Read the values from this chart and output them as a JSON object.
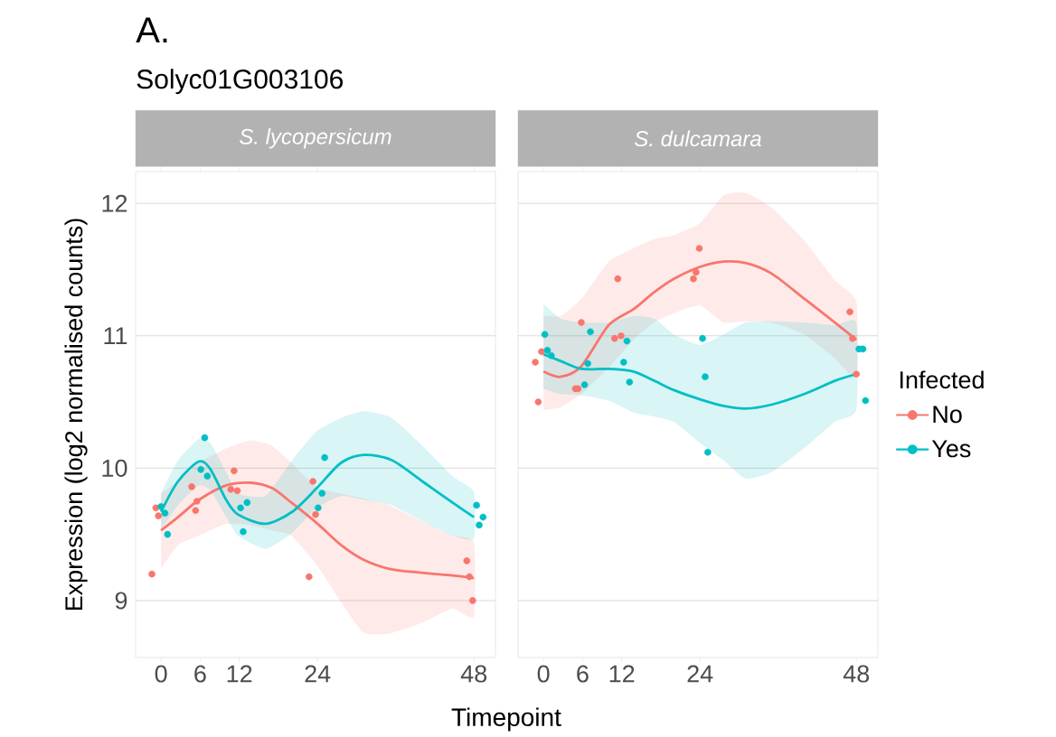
{
  "chart_data": [
    {
      "type": "scatter",
      "title": "S. lycopersicum",
      "annotations": [
        "A.",
        "Solyc01G003106"
      ],
      "xlabel": "Timepoint",
      "ylabel": "Expression (log2 normalised counts)",
      "xlim": [
        -3.9,
        51.3
      ],
      "ylim": [
        8.57,
        12.24
      ],
      "xticks": [
        0,
        6,
        12,
        24,
        48
      ],
      "yticks": [
        9,
        10,
        11,
        12
      ],
      "grid": "y",
      "series": [
        {
          "marker": "circle",
          "color": "#f8766d",
          "x": [
            -1.4,
            -0.8,
            -0.4,
            4.7,
            5.3,
            5.5,
            11.2,
            10.7,
            11.7,
            23.3,
            23.7,
            22.7,
            46.9,
            47.3,
            47.8
          ],
          "values": [
            9.2,
            9.7,
            9.64,
            9.86,
            9.68,
            9.75,
            9.98,
            9.84,
            9.83,
            9.9,
            9.65,
            9.18,
            9.3,
            9.18,
            9.0
          ]
        },
        {
          "marker": "circle",
          "color": "#00bfc4",
          "x": [
            0.0,
            0.6,
            1.0,
            6.7,
            6.1,
            7.1,
            12.2,
            13.2,
            12.6,
            25.1,
            24.7,
            24.1,
            48.4,
            49.4,
            48.8
          ],
          "values": [
            9.71,
            9.66,
            9.5,
            10.23,
            9.99,
            9.94,
            9.7,
            9.74,
            9.52,
            10.08,
            9.81,
            9.7,
            9.72,
            9.63,
            9.57
          ]
        },
        {
          "type": "line",
          "marker": "none",
          "color": "#f8766d",
          "x": [
            0,
            2.6,
            5.8,
            10,
            13.8,
            17,
            20,
            24,
            27.6,
            31,
            35,
            40,
            44.7,
            48
          ],
          "values": [
            9.53,
            9.63,
            9.76,
            9.87,
            9.89,
            9.85,
            9.74,
            9.58,
            9.42,
            9.31,
            9.24,
            9.21,
            9.19,
            9.17
          ],
          "upper": [
            9.81,
            9.9,
            10.04,
            10.15,
            10.21,
            10.17,
            10.04,
            9.85,
            9.81,
            9.77,
            9.72,
            9.6,
            9.49,
            9.44
          ],
          "lower": [
            9.24,
            9.42,
            9.49,
            9.58,
            9.57,
            9.53,
            9.49,
            9.26,
            8.99,
            8.76,
            8.75,
            8.83,
            8.94,
            8.88
          ]
        },
        {
          "type": "line",
          "marker": "none",
          "color": "#00bfc4",
          "x": [
            0,
            2.6,
            5.8,
            7.6,
            10,
            11.8,
            16,
            20.1,
            23.9,
            27.6,
            31.2,
            35.4,
            40.1,
            44.7,
            48
          ],
          "values": [
            9.67,
            9.9,
            10.05,
            9.99,
            9.76,
            9.65,
            9.58,
            9.67,
            9.85,
            10.04,
            10.1,
            10.06,
            9.9,
            9.74,
            9.63
          ],
          "upper": [
            9.81,
            10.06,
            10.22,
            10.19,
            9.97,
            9.81,
            9.79,
            10.06,
            10.28,
            10.38,
            10.43,
            10.38,
            10.17,
            9.94,
            9.82
          ],
          "lower": [
            9.53,
            9.72,
            9.87,
            9.83,
            9.63,
            9.49,
            9.39,
            9.51,
            9.7,
            9.79,
            9.76,
            9.72,
            9.6,
            9.49,
            9.47
          ]
        }
      ]
    },
    {
      "type": "scatter",
      "title": "S. dulcamara",
      "legend": "right",
      "legend_title": "Infected",
      "tick_labels": "x",
      "xlim": [
        -3.9,
        51.3
      ],
      "ylim": [
        8.57,
        12.24
      ],
      "xticks": [
        0,
        6,
        12,
        24,
        48
      ],
      "yticks": [
        9,
        10,
        11,
        12
      ],
      "grid": "y",
      "series": [
        {
          "marker": "circle",
          "color": "#f8766d",
          "x": [
            -1.25,
            -0.3,
            -0.8,
            5.8,
            4.9,
            5.3,
            11.4,
            10.9,
            11.9,
            23.9,
            23.4,
            23.0,
            47.0,
            47.4,
            48.0
          ],
          "values": [
            10.8,
            10.88,
            10.5,
            11.1,
            10.6,
            10.6,
            11.43,
            10.98,
            11.0,
            11.66,
            11.48,
            11.43,
            11.18,
            10.98,
            10.71
          ]
        },
        {
          "marker": "circle",
          "color": "#00bfc4",
          "x": [
            0.2,
            0.6,
            1.2,
            7.2,
            6.8,
            6.3,
            12.8,
            12.3,
            13.2,
            24.4,
            24.8,
            25.2,
            48.4,
            49.0,
            49.4
          ],
          "values": [
            11.01,
            10.89,
            10.85,
            11.03,
            10.79,
            10.63,
            10.96,
            10.8,
            10.65,
            10.98,
            10.69,
            10.12,
            10.9,
            10.9,
            10.51
          ]
        },
        {
          "type": "line",
          "marker": "none",
          "name": "No",
          "color": "#f8766d",
          "x": [
            0,
            2.6,
            5.8,
            10,
            13.8,
            17,
            20,
            24,
            27.6,
            31,
            35,
            40,
            44.7,
            48
          ],
          "values": [
            10.73,
            10.69,
            10.77,
            11.08,
            11.2,
            11.33,
            11.43,
            11.52,
            11.56,
            11.55,
            11.47,
            11.28,
            11.1,
            10.97
          ],
          "upper": [
            11.15,
            11.15,
            11.28,
            11.56,
            11.66,
            11.73,
            11.76,
            11.85,
            12.06,
            12.08,
            11.97,
            11.72,
            11.42,
            11.26
          ],
          "lower": [
            10.44,
            10.46,
            10.56,
            10.76,
            10.97,
            11.1,
            11.17,
            11.23,
            11.1,
            11.11,
            11.1,
            11.01,
            10.83,
            10.69
          ]
        },
        {
          "type": "line",
          "marker": "none",
          "name": "Yes",
          "color": "#00bfc4",
          "x": [
            0,
            2.6,
            5.8,
            10,
            13.8,
            17,
            20,
            24,
            27.6,
            31,
            35,
            40,
            44.7,
            48
          ],
          "values": [
            10.86,
            10.81,
            10.75,
            10.75,
            10.73,
            10.66,
            10.59,
            10.52,
            10.47,
            10.45,
            10.48,
            10.56,
            10.66,
            10.71
          ],
          "upper": [
            11.24,
            11.13,
            11.1,
            11.1,
            11.15,
            11.13,
            11.01,
            10.93,
            11.01,
            11.1,
            11.11,
            11.1,
            11.08,
            11.1
          ],
          "lower": [
            10.6,
            10.56,
            10.55,
            10.51,
            10.42,
            10.39,
            10.35,
            10.19,
            10.06,
            9.92,
            9.97,
            10.15,
            10.35,
            10.44
          ]
        }
      ]
    }
  ]
}
